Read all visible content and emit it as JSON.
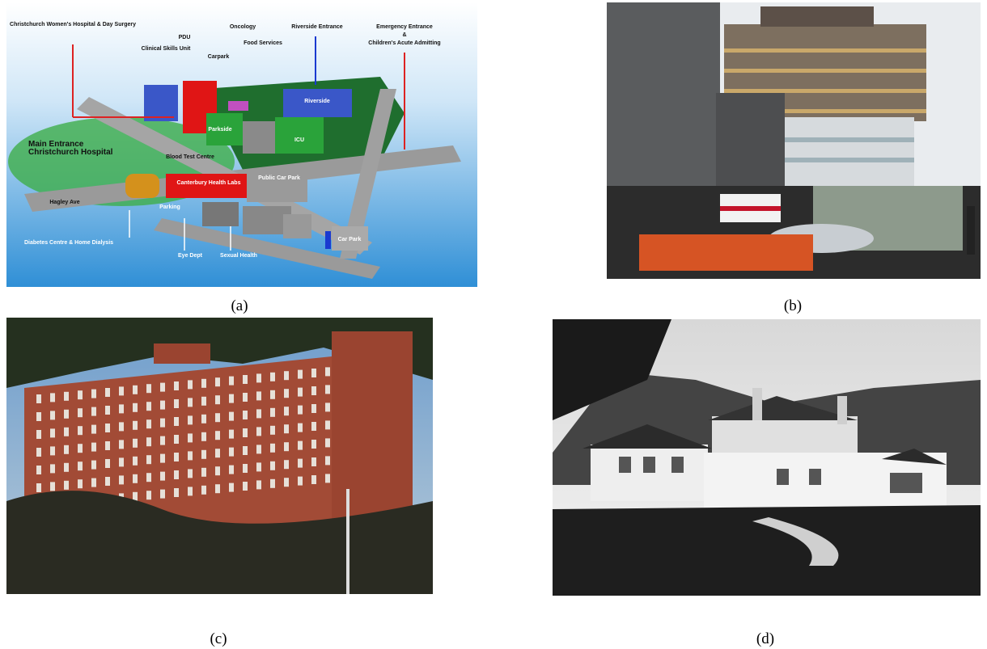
{
  "figure": {
    "panels": [
      {
        "caption": "(a)",
        "labels": [
          "Christchurch Women's Hospital & Day Surgery",
          "PDU",
          "Clinical Skills Unit",
          "Carpark",
          "Oncology",
          "Food Services",
          "Riverside Entrance",
          "Emergency Entrance",
          "&",
          "Children's Acute Admitting",
          "Main Entrance",
          "Christchurch Hospital",
          "Blood Test Centre",
          "Public Car Park",
          "Hagley Ave",
          "Diabetes Centre & Home Dialysis",
          "Eye Dept",
          "Sexual Health",
          "Riverside",
          "Parkside",
          "ICU",
          "Car Park",
          "Canterbury Health Labs",
          "Parking"
        ]
      },
      {
        "caption": "(b)"
      },
      {
        "caption": "(c)"
      },
      {
        "caption": "(d)"
      }
    ]
  }
}
